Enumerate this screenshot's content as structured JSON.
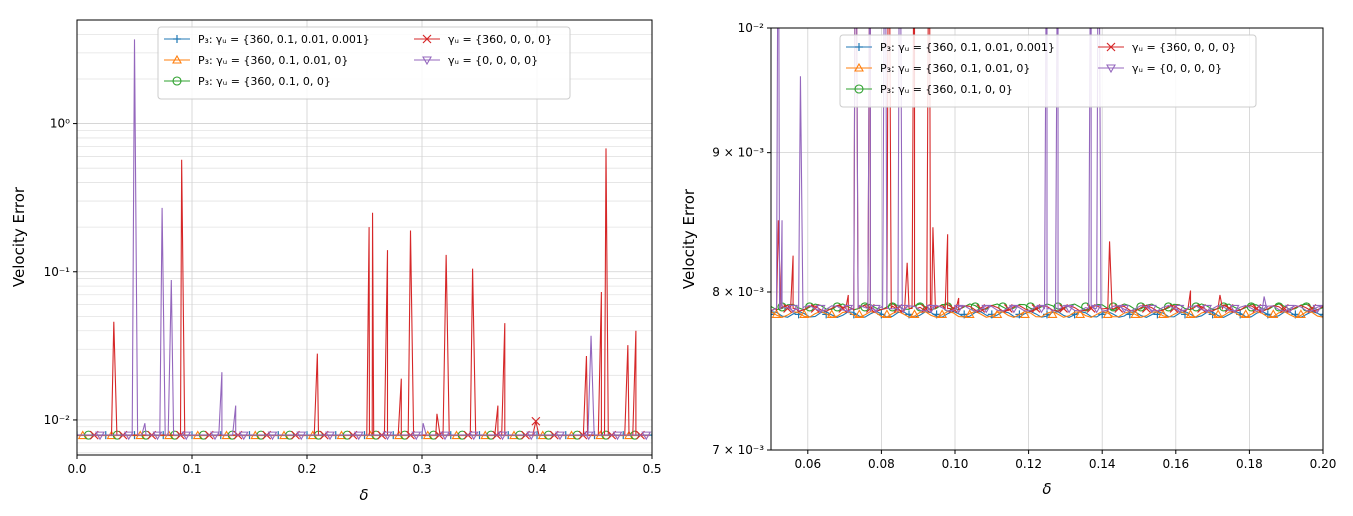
{
  "chart_data": [
    {
      "type": "line",
      "yscale": "log",
      "xlabel": "δ",
      "ylabel": "Velocity Error",
      "xlim": [
        0.0,
        0.5
      ],
      "ylim": [
        0.0058,
        5.0
      ],
      "xticks": [
        0.0,
        0.1,
        0.2,
        0.3,
        0.4,
        0.5
      ],
      "xtick_labels": [
        "0.0",
        "0.1",
        "0.2",
        "0.3",
        "0.4",
        "0.5"
      ],
      "yticks": [
        0.01,
        0.1,
        1
      ],
      "ytick_labels": [
        "10⁻²",
        "10⁻¹",
        "10⁰"
      ],
      "grid": true,
      "legend_loc": "top-center",
      "legend_cols": 2,
      "series": [
        {
          "name": "P₃: γᵤ = {360, 0.1, 0.01, 0.001}",
          "color": "#1f77b4",
          "marker": "plus",
          "baseline": 0.0079,
          "spikes": []
        },
        {
          "name": "P₃: γᵤ = {360, 0.1, 0.01, 0}",
          "color": "#ff7f0e",
          "marker": "triangle-up",
          "baseline": 0.00785,
          "spikes": []
        },
        {
          "name": "P₃: γᵤ = {360, 0.1, 0, 0}",
          "color": "#2ca02c",
          "marker": "circle",
          "baseline": 0.0079,
          "spikes": []
        },
        {
          "name": "γᵤ = {360, 0, 0, 0}",
          "color": "#d62728",
          "marker": "x",
          "baseline": 0.0079,
          "spikes": [
            [
              0.032,
              0.046
            ],
            [
              0.091,
              0.57
            ],
            [
              0.209,
              0.028
            ],
            [
              0.254,
              0.2
            ],
            [
              0.257,
              0.25
            ],
            [
              0.27,
              0.14
            ],
            [
              0.282,
              0.019
            ],
            [
              0.29,
              0.19
            ],
            [
              0.313,
              0.011
            ],
            [
              0.321,
              0.13
            ],
            [
              0.344,
              0.105
            ],
            [
              0.366,
              0.0125
            ],
            [
              0.372,
              0.045
            ],
            [
              0.399,
              0.0098
            ],
            [
              0.443,
              0.027
            ],
            [
              0.456,
              0.073
            ],
            [
              0.46,
              0.68
            ],
            [
              0.479,
              0.032
            ],
            [
              0.486,
              0.04
            ]
          ]
        },
        {
          "name": "γᵤ = {0, 0, 0, 0}",
          "color": "#9467bd",
          "marker": "triangle-down",
          "baseline": 0.0079,
          "spikes": [
            [
              0.05,
              3.7
            ],
            [
              0.059,
              0.0095
            ],
            [
              0.074,
              0.27
            ],
            [
              0.082,
              0.088
            ],
            [
              0.126,
              0.021
            ],
            [
              0.138,
              0.0125
            ],
            [
              0.301,
              0.0095
            ],
            [
              0.447,
              0.037
            ]
          ]
        }
      ]
    },
    {
      "type": "line",
      "yscale": "log",
      "xlabel": "δ",
      "ylabel": "Velocity Error",
      "xlim": [
        0.05,
        0.2
      ],
      "ylim": [
        0.007,
        0.01
      ],
      "xticks": [
        0.06,
        0.08,
        0.1,
        0.12,
        0.14,
        0.16,
        0.18,
        0.2
      ],
      "xtick_labels": [
        "0.06",
        "0.08",
        "0.10",
        "0.12",
        "0.14",
        "0.16",
        "0.18",
        "0.20"
      ],
      "yticks": [
        0.007,
        0.008,
        0.009,
        0.01
      ],
      "ytick_labels": [
        "7 × 10⁻³",
        "8 × 10⁻³",
        "9 × 10⁻³",
        "10⁻²"
      ],
      "grid": true,
      "legend_loc": "top-center",
      "legend_cols": 2,
      "series": [
        {
          "name": "P₃: γᵤ = {360, 0.1, 0.01, 0.001}",
          "color": "#1f77b4",
          "marker": "plus",
          "baseline": 0.00785,
          "spikes": []
        },
        {
          "name": "P₃: γᵤ = {360, 0.1, 0.01, 0}",
          "color": "#ff7f0e",
          "marker": "triangle-up",
          "baseline": 0.00785,
          "spikes": []
        },
        {
          "name": "P₃: γᵤ = {360, 0.1, 0, 0}",
          "color": "#2ca02c",
          "marker": "circle",
          "baseline": 0.0079,
          "spikes": []
        },
        {
          "name": "γᵤ = {360, 0, 0, 0}",
          "color": "#d62728",
          "marker": "x",
          "baseline": 0.00789,
          "spikes": [
            [
              0.052,
              0.0085
            ],
            [
              0.056,
              0.00825
            ],
            [
              0.071,
              0.00798
            ],
            [
              0.073,
              0.012
            ],
            [
              0.077,
              0.012
            ],
            [
              0.082,
              0.012
            ],
            [
              0.087,
              0.0082
            ],
            [
              0.089,
              0.012
            ],
            [
              0.093,
              0.012
            ],
            [
              0.094,
              0.00845
            ],
            [
              0.098,
              0.0084
            ],
            [
              0.101,
              0.00796
            ],
            [
              0.142,
              0.00835
            ],
            [
              0.164,
              0.00801
            ],
            [
              0.172,
              0.00798
            ]
          ]
        },
        {
          "name": "γᵤ = {0, 0, 0, 0}",
          "color": "#9467bd",
          "marker": "triangle-down",
          "baseline": 0.00789,
          "spikes": [
            [
              0.052,
              0.012
            ],
            [
              0.053,
              0.0085
            ],
            [
              0.058,
              0.0096
            ],
            [
              0.073,
              0.012
            ],
            [
              0.077,
              0.012
            ],
            [
              0.081,
              0.012
            ],
            [
              0.085,
              0.012
            ],
            [
              0.125,
              0.012
            ],
            [
              0.128,
              0.012
            ],
            [
              0.137,
              0.012
            ],
            [
              0.139,
              0.012
            ],
            [
              0.184,
              0.00797
            ]
          ]
        }
      ]
    }
  ]
}
